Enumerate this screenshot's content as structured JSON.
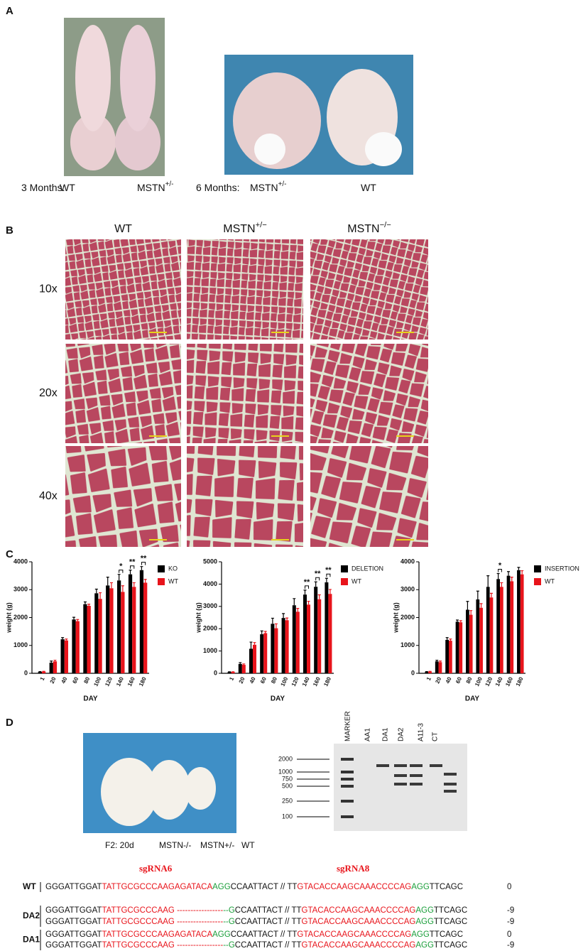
{
  "panels": [
    "A",
    "B",
    "C",
    "D"
  ],
  "panel_a": {
    "captions": [
      {
        "text": "3 Months:"
      },
      {
        "text": "WT"
      },
      {
        "text": "MSTN",
        "sup": "+/-"
      },
      {
        "text": "6 Months:"
      },
      {
        "text": "MSTN",
        "sup": "+/-"
      },
      {
        "text": "WT"
      }
    ]
  },
  "panel_b": {
    "columns": [
      {
        "text": "WT"
      },
      {
        "text": "MSTN",
        "sup": "+/−"
      },
      {
        "text": "MSTN",
        "sup": "−/−"
      }
    ],
    "rows": [
      "10x",
      "20x",
      "40x"
    ]
  },
  "chart_data": [
    {
      "type": "bar",
      "xlabel": "DAY",
      "ylabel": "weight (g)",
      "legend": "right",
      "categories": [
        "1",
        "20",
        "40",
        "60",
        "80",
        "100",
        "120",
        "140",
        "160",
        "180"
      ],
      "series": [
        {
          "name": "KO",
          "color": "#000000",
          "values": [
            50,
            380,
            1220,
            1930,
            2480,
            2870,
            3150,
            3330,
            3550,
            3700
          ],
          "errors": [
            10,
            60,
            60,
            80,
            80,
            150,
            300,
            220,
            150,
            130
          ]
        },
        {
          "name": "WT",
          "color": "#e8141b",
          "values": [
            60,
            430,
            1180,
            1870,
            2420,
            2670,
            3050,
            2920,
            3100,
            3250
          ],
          "errors": [
            10,
            40,
            50,
            60,
            60,
            220,
            200,
            220,
            150,
            120
          ]
        }
      ],
      "ylim": [
        0,
        4000
      ],
      "yticks": [
        0,
        1000,
        2000,
        3000,
        4000
      ],
      "annotations": [
        {
          "category": "140",
          "text": "*"
        },
        {
          "category": "160",
          "text": "**"
        },
        {
          "category": "180",
          "text": "**"
        }
      ]
    },
    {
      "type": "bar",
      "xlabel": "DAY",
      "ylabel": "weight (g)",
      "legend": "right",
      "categories": [
        "1",
        "20",
        "40",
        "60",
        "80",
        "100",
        "120",
        "140",
        "160",
        "180"
      ],
      "series": [
        {
          "name": "DELETION",
          "color": "#000000",
          "values": [
            60,
            420,
            1100,
            1750,
            2220,
            2480,
            3050,
            3530,
            3880,
            4080
          ],
          "errors": [
            10,
            60,
            300,
            150,
            250,
            200,
            300,
            200,
            220,
            180
          ]
        },
        {
          "name": "WT",
          "color": "#e8141b",
          "values": [
            60,
            380,
            1280,
            1800,
            2020,
            2380,
            2760,
            3080,
            3320,
            3560
          ],
          "errors": [
            10,
            40,
            100,
            80,
            200,
            100,
            150,
            150,
            200,
            200
          ]
        }
      ],
      "ylim": [
        0,
        5000
      ],
      "yticks": [
        0,
        1000,
        2000,
        3000,
        4000,
        5000
      ],
      "annotations": [
        {
          "category": "140",
          "text": "**"
        },
        {
          "category": "160",
          "text": "**"
        },
        {
          "category": "180",
          "text": "**"
        }
      ]
    },
    {
      "type": "bar",
      "xlabel": "DAY",
      "ylabel": "weight (g)",
      "legend": "right",
      "categories": [
        "1",
        "20",
        "40",
        "60",
        "80",
        "100",
        "120",
        "140",
        "160",
        "180"
      ],
      "series": [
        {
          "name": "INSERTION",
          "color": "#000000",
          "values": [
            50,
            430,
            1200,
            1850,
            2280,
            2650,
            3100,
            3380,
            3500,
            3700
          ],
          "errors": [
            10,
            40,
            80,
            60,
            300,
            300,
            400,
            200,
            150,
            100
          ]
        },
        {
          "name": "WT",
          "color": "#e8141b",
          "values": [
            60,
            400,
            1170,
            1830,
            2100,
            2350,
            2720,
            3100,
            3300,
            3550
          ],
          "errors": [
            10,
            40,
            60,
            60,
            150,
            150,
            150,
            150,
            150,
            130
          ]
        }
      ],
      "ylim": [
        0,
        4000
      ],
      "yticks": [
        0,
        1000,
        2000,
        3000,
        4000
      ],
      "annotations": [
        {
          "category": "140",
          "text": "*"
        }
      ]
    }
  ],
  "panel_d": {
    "photo_caption": [
      "F2: 20d",
      "MSTN-/-",
      "MSTN+/-",
      "WT"
    ],
    "gel": {
      "lanes": [
        "MARKER",
        "AA1",
        "DA1",
        "DA2",
        "A11-3",
        "CT"
      ],
      "sizes": [
        2000,
        1000,
        750,
        500,
        250,
        100
      ]
    },
    "guides": [
      "sgRNA6",
      "sgRNA8"
    ],
    "sequences": [
      {
        "label": "WT",
        "lines": [
          {
            "parts": [
              {
                "text": "GGGATTGGAT",
                "color": "#111111"
              },
              {
                "text": "TATTGCGCCCAAGAGATACA",
                "color": "#e8141b"
              },
              {
                "text": "AGG",
                "color": "#1a9e3a"
              },
              {
                "text": "CCAATTACT // TT",
                "color": "#111111"
              },
              {
                "text": "GTACACCAAGCAAACCCCAG",
                "color": "#e8141b"
              },
              {
                "text": "AGG",
                "color": "#1a9e3a"
              },
              {
                "text": "TTCAGC",
                "color": "#111111"
              }
            ],
            "change": 0
          }
        ]
      },
      {
        "label": "DA2",
        "lines": [
          {
            "parts": [
              {
                "text": "GGGATTGGAT",
                "color": "#111111"
              },
              {
                "text": "TATTGCGCCCAAG",
                "color": "#e8141b"
              },
              {
                "text": " -----------------",
                "color": "#e8141b"
              },
              {
                "text": "--G",
                "color": "#1a9e3a"
              },
              {
                "text": "CCAATTACT // TT",
                "color": "#111111"
              },
              {
                "text": "GTACACCAAGCAAACCCCAG",
                "color": "#e8141b"
              },
              {
                "text": "AGG",
                "color": "#1a9e3a"
              },
              {
                "text": "TTCAGC",
                "color": "#111111"
              }
            ],
            "change": -9
          },
          {
            "parts": [
              {
                "text": "GGGATTGGAT",
                "color": "#111111"
              },
              {
                "text": "TATTGCGCCCAAG",
                "color": "#e8141b"
              },
              {
                "text": " -----------------",
                "color": "#e8141b"
              },
              {
                "text": "--G",
                "color": "#1a9e3a"
              },
              {
                "text": "CCAATTACT // TT",
                "color": "#111111"
              },
              {
                "text": "GTACACCAAGCAAACCCCAG",
                "color": "#e8141b"
              },
              {
                "text": "AGG",
                "color": "#1a9e3a"
              },
              {
                "text": "TTCAGC",
                "color": "#111111"
              }
            ],
            "change": -9
          }
        ]
      },
      {
        "label": "DA1",
        "lines": [
          {
            "parts": [
              {
                "text": "GGGATTGGAT",
                "color": "#111111"
              },
              {
                "text": "TATTGCGCCCAAGAGATACA",
                "color": "#e8141b"
              },
              {
                "text": "AGG",
                "color": "#1a9e3a"
              },
              {
                "text": "CCAATTACT // TT",
                "color": "#111111"
              },
              {
                "text": "GTACACCAAGCAAACCCCAG",
                "color": "#e8141b"
              },
              {
                "text": "AGG",
                "color": "#1a9e3a"
              },
              {
                "text": "TTCAGC",
                "color": "#111111"
              }
            ],
            "change": 0
          },
          {
            "parts": [
              {
                "text": "GGGATTGGAT",
                "color": "#111111"
              },
              {
                "text": "TATTGCGCCCAAG",
                "color": "#e8141b"
              },
              {
                "text": " -----------------",
                "color": "#e8141b"
              },
              {
                "text": "--G",
                "color": "#1a9e3a"
              },
              {
                "text": "CCAATTACT // TT",
                "color": "#111111"
              },
              {
                "text": "GTACACCAAGCAAACCCCAG",
                "color": "#e8141b"
              },
              {
                "text": "AGG",
                "color": "#1a9e3a"
              },
              {
                "text": "TTCAGC",
                "color": "#111111"
              }
            ],
            "change": -9
          }
        ]
      }
    ]
  }
}
